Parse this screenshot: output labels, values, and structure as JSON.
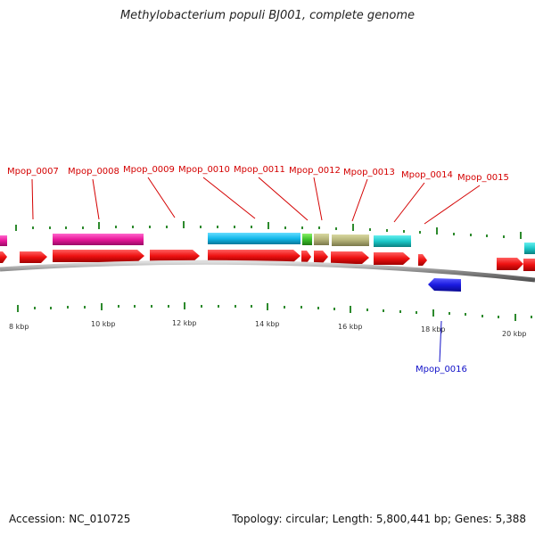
{
  "title": "Methylobacterium populi BJ001, complete genome",
  "footer": {
    "accession": "Accession: NC_010725",
    "summary": "Topology: circular; Length: 5,800,441 bp; Genes: 5,388"
  },
  "colors": {
    "plus_gene": "#ee1111",
    "minus_gene": "#1a1ae0",
    "backbone": "#8a8a8a",
    "tick": "#2d8a2d",
    "plus_label": "#d40000",
    "minus_label": "#1010c8"
  },
  "scale": {
    "unit": "kbp",
    "labels": [
      "8 kbp",
      "10 kbp",
      "12 kbp",
      "14 kbp",
      "16 kbp",
      "18 kbp",
      "20 kbp"
    ]
  },
  "gene_labels_plus": [
    "Mpop_0007",
    "Mpop_0008",
    "Mpop_0009",
    "Mpop_0010",
    "Mpop_0011",
    "Mpop_0012",
    "Mpop_0013",
    "Mpop_0014",
    "Mpop_0015"
  ],
  "gene_labels_minus": [
    "Mpop_0016"
  ]
}
